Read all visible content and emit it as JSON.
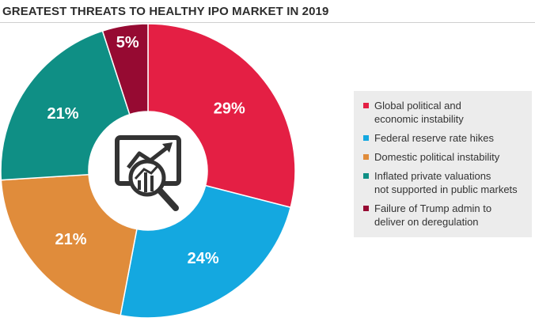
{
  "title": "GREATEST THREATS TO HEALTHY IPO MARKET IN 2019",
  "chart_data": {
    "type": "pie",
    "style": "donut",
    "title": "GREATEST THREATS TO HEALTHY IPO MARKET IN 2019",
    "unit": "%",
    "legend_position": "right",
    "categories": [
      "Global political and economic instability",
      "Federal reserve rate hikes",
      "Domestic political instability",
      "Inflated private valuations not supported in public markets",
      "Failure of Trump admin to deliver on deregulation"
    ],
    "values": [
      29,
      24,
      21,
      21,
      5
    ],
    "labels": [
      "29%",
      "24%",
      "21%",
      "21%",
      "5%"
    ],
    "colors": [
      "#e41f44",
      "#14a8e0",
      "#e08c3b",
      "#0f8f85",
      "#960a32"
    ]
  },
  "legend": [
    {
      "text": "Global political and\neconomic instability",
      "color": "#e41f44"
    },
    {
      "text": "Federal reserve rate hikes",
      "color": "#14a8e0"
    },
    {
      "text": "Domestic political instability",
      "color": "#e08c3b"
    },
    {
      "text": "Inflated private valuations\nnot supported in public markets",
      "color": "#0f8f85"
    },
    {
      "text": "Failure of Trump admin to\ndeliver on deregulation",
      "color": "#960a32"
    }
  ],
  "center_icon": "chart-magnifier-icon"
}
